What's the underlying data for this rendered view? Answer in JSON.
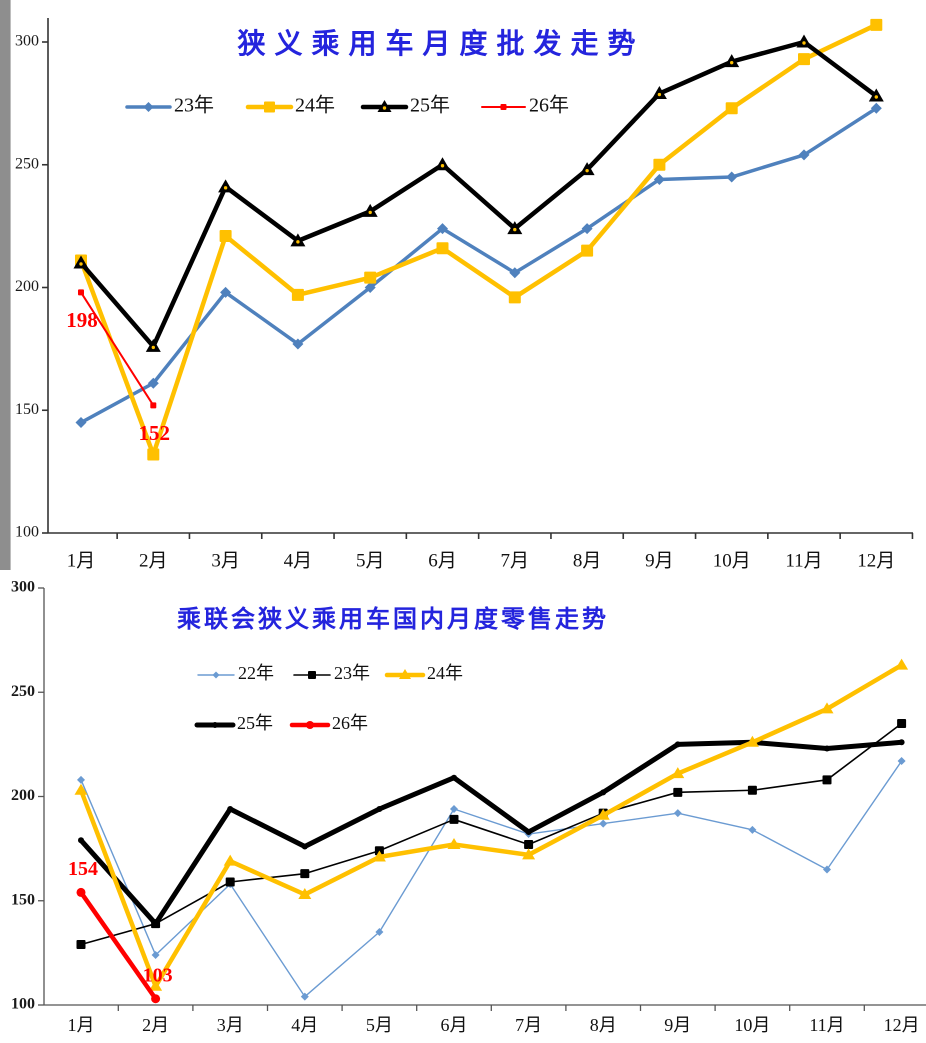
{
  "page": {
    "background": "#ffffff"
  },
  "scrollbar": {
    "color": "#8e8e8e"
  },
  "chart_data": [
    {
      "type": "line",
      "title": "狭义乘用车月度批发走势",
      "title_color": "#2424dd",
      "xlabel": "",
      "ylabel": "",
      "x_labels": [
        "1月",
        "2月",
        "3月",
        "4月",
        "5月",
        "6月",
        "7月",
        "8月",
        "9月",
        "10月",
        "11月",
        "12月"
      ],
      "y_ticks": [
        300,
        250,
        200,
        150,
        100
      ],
      "ylim": [
        100,
        310
      ],
      "grid": false,
      "legend_position": "inside-top",
      "legend_rows": [
        [
          "23年",
          "24年",
          "25年",
          "26年"
        ]
      ],
      "series": [
        {
          "name": "23年",
          "color": "#4f81bd",
          "marker": "diamond",
          "line_width": 3.5,
          "marker_size": 11,
          "values": [
            145,
            161,
            198,
            177,
            200,
            224,
            206,
            224,
            244,
            245,
            254,
            273
          ]
        },
        {
          "name": "24年",
          "color": "#ffc000",
          "marker": "square",
          "line_width": 4.5,
          "marker_size": 12,
          "values": [
            211,
            132,
            221,
            197,
            204,
            216,
            196,
            215,
            250,
            273,
            293,
            307
          ]
        },
        {
          "name": "25年",
          "color": "#000000",
          "marker": "triangle-dot",
          "line_width": 4.5,
          "marker_size": 13,
          "values": [
            210,
            176,
            241,
            219,
            231,
            250,
            224,
            248,
            279,
            292,
            300,
            278
          ]
        },
        {
          "name": "26年",
          "color": "#ff0000",
          "marker": "square",
          "line_width": 2,
          "marker_size": 6,
          "values": [
            198,
            152
          ]
        }
      ],
      "annotations": [
        {
          "text": "198",
          "series": "26年",
          "month_index": 0,
          "placement": "below",
          "color": "#ff0000"
        },
        {
          "text": "152",
          "series": "26年",
          "month_index": 1,
          "placement": "below",
          "color": "#ff0000"
        }
      ]
    },
    {
      "type": "line",
      "title": "乘联会狭义乘用车国内月度零售走势",
      "title_color": "#2424dd",
      "xlabel": "",
      "ylabel": "",
      "x_labels": [
        "1月",
        "2月",
        "3月",
        "4月",
        "5月",
        "6月",
        "7月",
        "8月",
        "9月",
        "10月",
        "11月",
        "12月"
      ],
      "y_ticks": [
        300,
        250,
        200,
        150,
        100
      ],
      "ylim": [
        100,
        310
      ],
      "grid": false,
      "legend_position": "inside-top",
      "legend_rows": [
        [
          "22年",
          "23年",
          "24年"
        ],
        [
          "25年",
          "26年"
        ]
      ],
      "series": [
        {
          "name": "22年",
          "color": "#6b9bd2",
          "marker": "diamond",
          "line_width": 1.4,
          "marker_size": 8,
          "values": [
            208,
            124,
            158,
            104,
            135,
            194,
            182,
            187,
            192,
            184,
            165,
            217
          ]
        },
        {
          "name": "23年",
          "color": "#000000",
          "marker": "square",
          "line_width": 1.6,
          "marker_size": 9,
          "values": [
            129,
            139,
            159,
            163,
            174,
            189,
            177,
            192,
            202,
            203,
            208,
            235
          ]
        },
        {
          "name": "24年",
          "color": "#ffc000",
          "marker": "triangle",
          "line_width": 4.5,
          "marker_size": 11,
          "values": [
            203,
            109,
            169,
            153,
            171,
            177,
            172,
            191,
            211,
            226,
            242,
            263
          ]
        },
        {
          "name": "25年",
          "color": "#000000",
          "marker": "circle",
          "line_width": 5,
          "marker_size": 6,
          "values": [
            179,
            139,
            194,
            176,
            194,
            209,
            183,
            202,
            225,
            226,
            223,
            226
          ]
        },
        {
          "name": "26年",
          "color": "#ff0000",
          "marker": "circle",
          "line_width": 4.5,
          "marker_size": 9,
          "values": [
            154,
            103
          ]
        }
      ],
      "annotations": [
        {
          "text": "154",
          "series": "26年",
          "month_index": 0,
          "placement": "above",
          "color": "#ff0000"
        },
        {
          "text": "103",
          "series": "26年",
          "month_index": 1,
          "placement": "above",
          "color": "#ff0000"
        }
      ]
    }
  ]
}
